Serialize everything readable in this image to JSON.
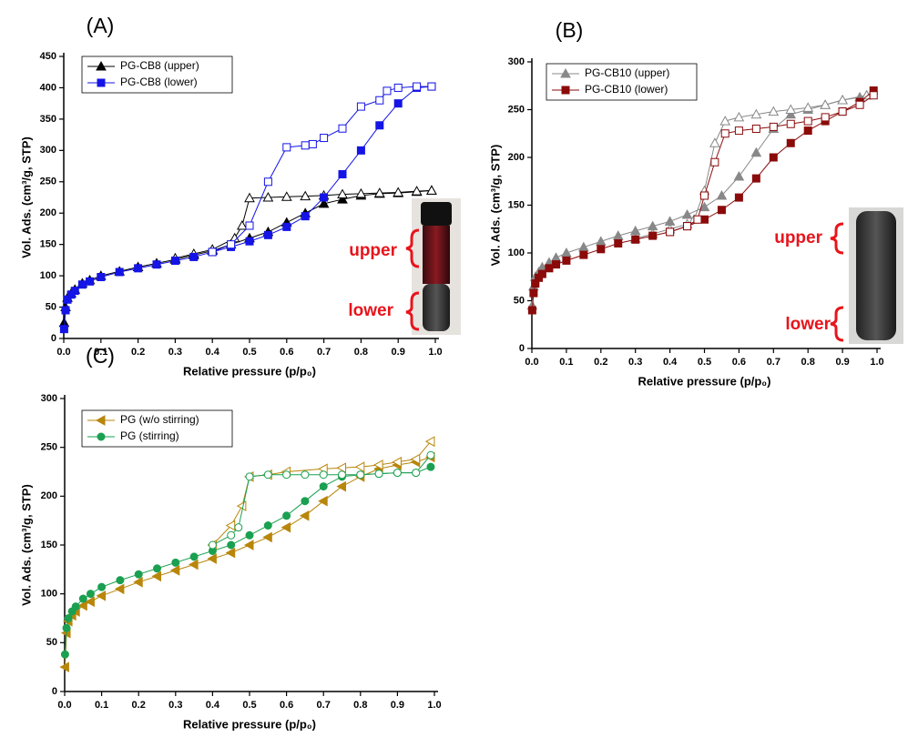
{
  "chart_data": [
    {
      "type": "line",
      "label": "(A)",
      "x_label": "Relative pressure (p/p₀)",
      "y_label": "Vol. Ads. (cm³/g, STP)",
      "xlim": [
        0,
        1
      ],
      "ylim": [
        0,
        450
      ],
      "xticks": [
        {
          "value": 0,
          "label": "0.0"
        },
        {
          "value": 0.1,
          "label": "0.1"
        },
        {
          "value": 0.2,
          "label": "0.2"
        },
        {
          "value": 0.3,
          "label": "0.3"
        },
        {
          "value": 0.4,
          "label": "0.4"
        },
        {
          "value": 0.5,
          "label": "0.5"
        },
        {
          "value": 0.6,
          "label": "0.6"
        },
        {
          "value": 0.7,
          "label": "0.7"
        },
        {
          "value": 0.8,
          "label": "0.8"
        },
        {
          "value": 0.9,
          "label": "0.9"
        },
        {
          "value": 1,
          "label": "1.0"
        }
      ],
      "yticks": [
        0,
        50,
        100,
        150,
        200,
        250,
        300,
        350,
        400,
        450
      ],
      "legend": "upper left",
      "annotations": [
        "upper",
        "lower"
      ],
      "series": [
        {
          "name": "PG-CB8 (upper)",
          "color": "#000000",
          "marker": "triangle-up",
          "x": [
            0.001,
            0.005,
            0.01,
            0.02,
            0.03,
            0.05,
            0.07,
            0.1,
            0.15,
            0.2,
            0.25,
            0.3,
            0.35,
            0.4,
            0.45,
            0.5,
            0.55,
            0.6,
            0.65,
            0.7,
            0.75,
            0.8,
            0.85,
            0.9,
            0.95,
            0.99
          ],
          "values": [
            25,
            50,
            65,
            72,
            78,
            88,
            93,
            100,
            107,
            114,
            120,
            126,
            133,
            140,
            150,
            160,
            170,
            185,
            200,
            215,
            222,
            228,
            231,
            232,
            234,
            236
          ],
          "desorption_x": [
            0.99,
            0.95,
            0.9,
            0.85,
            0.8,
            0.75,
            0.7,
            0.65,
            0.6,
            0.55,
            0.5,
            0.48,
            0.46,
            0.4,
            0.35,
            0.3
          ],
          "desorption_values": [
            236,
            235,
            233,
            232,
            231,
            230,
            228,
            227,
            226,
            225,
            224,
            180,
            160,
            142,
            135,
            128
          ]
        },
        {
          "name": "PG-CB8 (lower)",
          "color": "#1414e6",
          "marker": "square",
          "x": [
            0.001,
            0.005,
            0.01,
            0.02,
            0.03,
            0.05,
            0.07,
            0.1,
            0.15,
            0.2,
            0.25,
            0.3,
            0.35,
            0.4,
            0.45,
            0.5,
            0.55,
            0.6,
            0.65,
            0.7,
            0.75,
            0.8,
            0.85,
            0.9,
            0.95,
            0.99
          ],
          "values": [
            15,
            45,
            62,
            70,
            76,
            86,
            91,
            98,
            106,
            112,
            118,
            124,
            130,
            138,
            146,
            155,
            165,
            178,
            195,
            225,
            262,
            300,
            340,
            375,
            400,
            402
          ],
          "desorption_x": [
            0.99,
            0.95,
            0.9,
            0.87,
            0.85,
            0.8,
            0.75,
            0.7,
            0.67,
            0.65,
            0.6,
            0.55,
            0.5,
            0.45,
            0.4
          ],
          "desorption_values": [
            402,
            402,
            400,
            395,
            380,
            370,
            335,
            320,
            310,
            308,
            305,
            250,
            180,
            150,
            138
          ]
        }
      ]
    },
    {
      "type": "line",
      "label": "(B)",
      "x_label": "Relative pressure (p/p₀)",
      "y_label": "Vol. Ads. (cm³/g, STP)",
      "xlim": [
        0,
        1
      ],
      "ylim": [
        0,
        300
      ],
      "xticks": [
        {
          "value": 0,
          "label": "0.0"
        },
        {
          "value": 0.1,
          "label": "0.1"
        },
        {
          "value": 0.2,
          "label": "0.2"
        },
        {
          "value": 0.3,
          "label": "0.3"
        },
        {
          "value": 0.4,
          "label": "0.4"
        },
        {
          "value": 0.5,
          "label": "0.5"
        },
        {
          "value": 0.6,
          "label": "0.6"
        },
        {
          "value": 0.7,
          "label": "0.7"
        },
        {
          "value": 0.8,
          "label": "0.8"
        },
        {
          "value": 0.9,
          "label": "0.9"
        },
        {
          "value": 1,
          "label": "1.0"
        }
      ],
      "yticks": [
        0,
        50,
        100,
        150,
        200,
        250,
        300
      ],
      "legend": "upper left",
      "annotations": [
        "upper",
        "lower"
      ],
      "series": [
        {
          "name": "PG-CB10 (upper)",
          "color": "#888888",
          "marker": "triangle-up",
          "x": [
            0.001,
            0.005,
            0.01,
            0.02,
            0.03,
            0.05,
            0.07,
            0.1,
            0.15,
            0.2,
            0.25,
            0.3,
            0.35,
            0.4,
            0.45,
            0.5,
            0.55,
            0.6,
            0.65,
            0.7,
            0.75,
            0.8,
            0.85,
            0.9,
            0.95,
            0.97
          ],
          "values": [
            45,
            65,
            75,
            80,
            85,
            90,
            95,
            100,
            106,
            112,
            118,
            123,
            128,
            133,
            140,
            148,
            160,
            180,
            205,
            230,
            245,
            250,
            255,
            260,
            263,
            265
          ],
          "desorption_x": [
            0.97,
            0.9,
            0.85,
            0.8,
            0.75,
            0.7,
            0.65,
            0.6,
            0.56,
            0.53,
            0.5,
            0.47,
            0.45,
            0.4,
            0.35,
            0.3
          ],
          "desorption_values": [
            265,
            260,
            255,
            252,
            250,
            248,
            245,
            242,
            238,
            215,
            165,
            135,
            130,
            125,
            120,
            115
          ]
        },
        {
          "name": "PG-CB10 (lower)",
          "color": "#8b0a0a",
          "marker": "square",
          "x": [
            0.001,
            0.005,
            0.01,
            0.02,
            0.03,
            0.05,
            0.07,
            0.1,
            0.15,
            0.2,
            0.25,
            0.3,
            0.35,
            0.4,
            0.45,
            0.5,
            0.55,
            0.6,
            0.65,
            0.7,
            0.75,
            0.8,
            0.85,
            0.9,
            0.95,
            0.99
          ],
          "values": [
            40,
            58,
            68,
            74,
            78,
            84,
            88,
            92,
            98,
            104,
            110,
            114,
            118,
            122,
            128,
            135,
            145,
            158,
            178,
            200,
            215,
            228,
            238,
            248,
            258,
            270
          ],
          "desorption_x": [
            0.99,
            0.95,
            0.9,
            0.85,
            0.8,
            0.75,
            0.7,
            0.65,
            0.6,
            0.56,
            0.53,
            0.5,
            0.48,
            0.45,
            0.4
          ],
          "desorption_values": [
            265,
            255,
            248,
            242,
            238,
            235,
            232,
            230,
            228,
            225,
            195,
            160,
            135,
            128,
            122
          ]
        }
      ]
    },
    {
      "type": "line",
      "label": "(C)",
      "x_label": "Relative pressure (p/p₀)",
      "y_label": "Vol. Ads. (cm³/g, STP)",
      "xlim": [
        0,
        1
      ],
      "ylim": [
        0,
        300
      ],
      "xticks": [
        {
          "value": 0,
          "label": "0.0"
        },
        {
          "value": 0.1,
          "label": "0.1"
        },
        {
          "value": 0.2,
          "label": "0.2"
        },
        {
          "value": 0.3,
          "label": "0.3"
        },
        {
          "value": 0.4,
          "label": "0.4"
        },
        {
          "value": 0.5,
          "label": "0.5"
        },
        {
          "value": 0.6,
          "label": "0.6"
        },
        {
          "value": 0.7,
          "label": "0.7"
        },
        {
          "value": 0.8,
          "label": "0.8"
        },
        {
          "value": 0.9,
          "label": "0.9"
        },
        {
          "value": 1,
          "label": "1.0"
        }
      ],
      "yticks": [
        0,
        50,
        100,
        150,
        200,
        250,
        300
      ],
      "legend": "upper left",
      "series": [
        {
          "name": "PG (w/o stirring)",
          "color": "#b8860b",
          "marker": "triangle-left",
          "x": [
            0.001,
            0.005,
            0.01,
            0.02,
            0.03,
            0.05,
            0.07,
            0.1,
            0.15,
            0.2,
            0.25,
            0.3,
            0.35,
            0.4,
            0.45,
            0.5,
            0.55,
            0.6,
            0.65,
            0.7,
            0.75,
            0.8,
            0.85,
            0.9,
            0.95,
            0.99
          ],
          "values": [
            25,
            60,
            72,
            78,
            82,
            88,
            92,
            98,
            105,
            112,
            118,
            124,
            130,
            136,
            142,
            150,
            158,
            168,
            180,
            195,
            210,
            220,
            228,
            232,
            235,
            240
          ],
          "desorption_x": [
            0.99,
            0.95,
            0.9,
            0.85,
            0.8,
            0.75,
            0.7,
            0.6,
            0.55,
            0.5,
            0.48,
            0.45,
            0.4
          ],
          "desorption_values": [
            256,
            238,
            235,
            232,
            230,
            229,
            228,
            225,
            222,
            220,
            190,
            170,
            150
          ]
        },
        {
          "name": "PG (stirring)",
          "color": "#1aa050",
          "marker": "circle",
          "x": [
            0.001,
            0.005,
            0.01,
            0.02,
            0.03,
            0.05,
            0.07,
            0.1,
            0.15,
            0.2,
            0.25,
            0.3,
            0.35,
            0.4,
            0.45,
            0.5,
            0.55,
            0.6,
            0.65,
            0.7,
            0.75,
            0.8,
            0.85,
            0.9,
            0.95,
            0.99
          ],
          "values": [
            38,
            65,
            75,
            82,
            87,
            95,
            100,
            107,
            114,
            120,
            126,
            132,
            138,
            144,
            150,
            160,
            170,
            180,
            195,
            210,
            220,
            222,
            223,
            224,
            224,
            230
          ],
          "desorption_x": [
            0.99,
            0.95,
            0.9,
            0.85,
            0.8,
            0.75,
            0.7,
            0.65,
            0.6,
            0.55,
            0.5,
            0.47,
            0.45,
            0.4
          ],
          "desorption_values": [
            242,
            224,
            224,
            223,
            222,
            222,
            222,
            222,
            222,
            222,
            220,
            168,
            160,
            150
          ]
        }
      ]
    }
  ]
}
